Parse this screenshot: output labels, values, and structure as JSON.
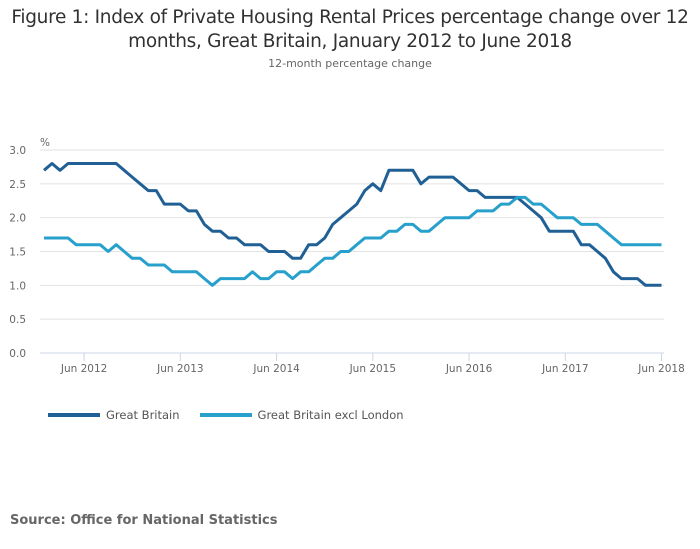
{
  "chart_data": {
    "type": "line",
    "title": "Figure 1: Index of Private Housing Rental Prices percentage change over 12 months, Great Britain, January 2012 to June 2018",
    "subtitle": "12-month percentage change",
    "xlabel": "",
    "ylabel": "%",
    "ylim": [
      0,
      3.0
    ],
    "yticks": [
      "0.0",
      "0.5",
      "1.0",
      "1.5",
      "2.0",
      "2.5",
      "3.0"
    ],
    "xticks": [
      "Jun 2012",
      "Jun 2013",
      "Jun 2014",
      "Jun 2015",
      "Jun 2016",
      "Jun 2017",
      "Jun 2018"
    ],
    "x_start": "Jan 2012",
    "x_end": "Jun 2018",
    "x_unit": "month",
    "grid": true,
    "legend_position": "bottom-left",
    "series": [
      {
        "name": "Great Britain",
        "color": "#206095",
        "values": [
          2.7,
          2.8,
          2.7,
          2.8,
          2.8,
          2.8,
          2.8,
          2.8,
          2.8,
          2.8,
          2.7,
          2.6,
          2.5,
          2.4,
          2.4,
          2.2,
          2.2,
          2.2,
          2.1,
          2.1,
          1.9,
          1.8,
          1.8,
          1.7,
          1.7,
          1.6,
          1.6,
          1.6,
          1.5,
          1.5,
          1.5,
          1.4,
          1.4,
          1.6,
          1.6,
          1.7,
          1.9,
          2.0,
          2.1,
          2.2,
          2.4,
          2.5,
          2.4,
          2.7,
          2.7,
          2.7,
          2.7,
          2.5,
          2.6,
          2.6,
          2.6,
          2.6,
          2.5,
          2.4,
          2.4,
          2.3,
          2.3,
          2.3,
          2.3,
          2.3,
          2.2,
          2.1,
          2.0,
          1.8,
          1.8,
          1.8,
          1.8,
          1.6,
          1.6,
          1.5,
          1.4,
          1.2,
          1.1,
          1.1,
          1.1,
          1.0,
          1.0,
          1.0
        ]
      },
      {
        "name": "Great Britain excl London",
        "color": "#27A0CC",
        "values": [
          1.7,
          1.7,
          1.7,
          1.7,
          1.6,
          1.6,
          1.6,
          1.6,
          1.5,
          1.6,
          1.5,
          1.4,
          1.4,
          1.3,
          1.3,
          1.3,
          1.2,
          1.2,
          1.2,
          1.2,
          1.1,
          1.0,
          1.1,
          1.1,
          1.1,
          1.1,
          1.2,
          1.1,
          1.1,
          1.2,
          1.2,
          1.1,
          1.2,
          1.2,
          1.3,
          1.4,
          1.4,
          1.5,
          1.5,
          1.6,
          1.7,
          1.7,
          1.7,
          1.8,
          1.8,
          1.9,
          1.9,
          1.8,
          1.8,
          1.9,
          2.0,
          2.0,
          2.0,
          2.0,
          2.1,
          2.1,
          2.1,
          2.2,
          2.2,
          2.3,
          2.3,
          2.2,
          2.2,
          2.1,
          2.0,
          2.0,
          2.0,
          1.9,
          1.9,
          1.9,
          1.8,
          1.7,
          1.6,
          1.6,
          1.6,
          1.6,
          1.6,
          1.6
        ]
      }
    ]
  },
  "source": "Source: Office for National Statistics"
}
